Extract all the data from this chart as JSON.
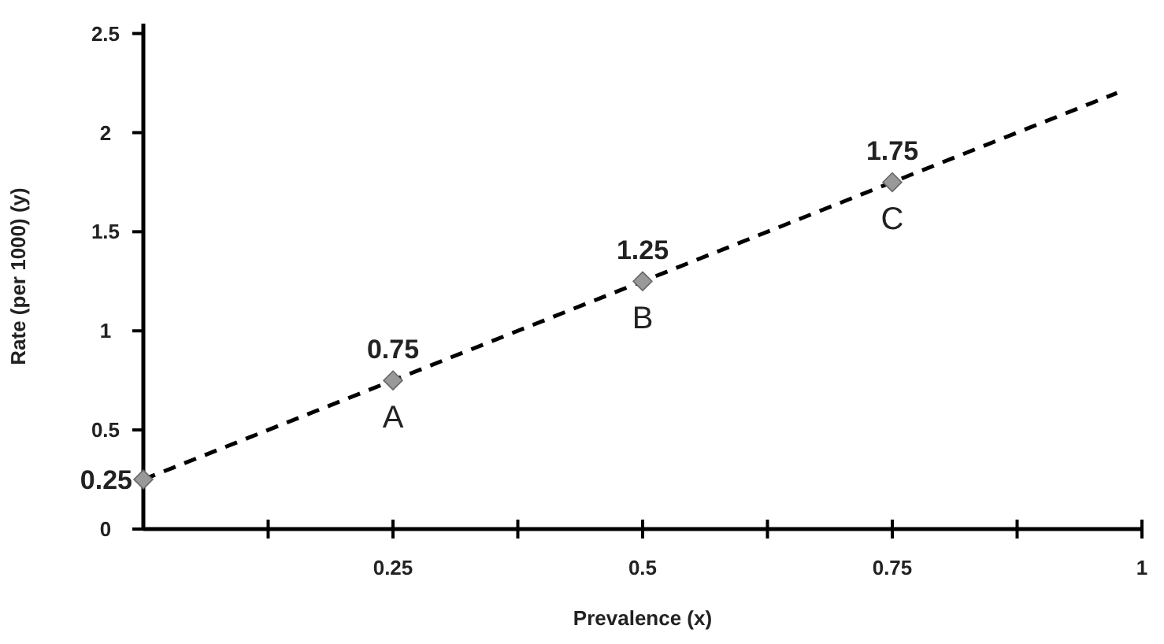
{
  "chart_data": {
    "type": "scatter",
    "xlabel": "Prevalence (x)",
    "ylabel": "Rate (per 1000) (y)",
    "xlim": [
      0,
      1
    ],
    "ylim": [
      0,
      2.55
    ],
    "xticks": [
      {
        "value": 0.125,
        "label": null
      },
      0.25,
      {
        "value": 0.375,
        "label": null
      },
      0.5,
      {
        "value": 0.625,
        "label": null
      },
      0.75,
      {
        "value": 0.875,
        "label": null
      },
      1
    ],
    "yticks": [
      0,
      0.5,
      1,
      1.5,
      2,
      2.5
    ],
    "grid": false,
    "series": [
      {
        "type": "line",
        "x": [
          0,
          0.975
        ],
        "values": [
          0.25,
          2.2
        ],
        "color": "#000000",
        "line_style": "dashed",
        "marker": "none"
      },
      {
        "x": [
          0,
          0.25,
          0.5,
          0.75
        ],
        "values": [
          0.25,
          0.75,
          1.25,
          1.75
        ],
        "color": "#999999",
        "marker": "diamond",
        "value_labels": [
          "0.25",
          "0.75",
          "1.25",
          "1.75"
        ]
      }
    ],
    "annotations": [
      {
        "text": "A",
        "x": 0.25,
        "y": 0.75
      },
      {
        "text": "B",
        "x": 0.5,
        "y": 1.25
      },
      {
        "text": "C",
        "x": 0.75,
        "y": 1.75
      }
    ]
  }
}
